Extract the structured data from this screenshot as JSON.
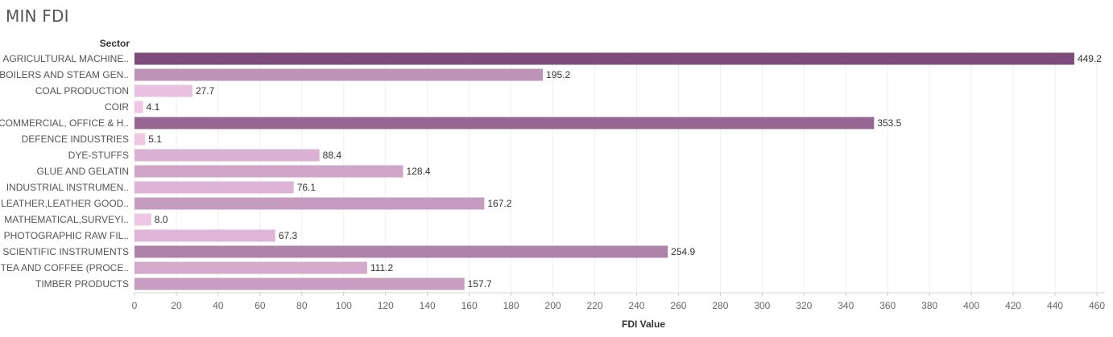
{
  "chart_data": {
    "type": "bar",
    "orientation": "horizontal",
    "title": "MIN FDI",
    "row_header": "Sector",
    "xlabel": "FDI Value",
    "ylabel": "",
    "xlim": [
      0,
      460
    ],
    "ticks": [
      0,
      20,
      40,
      60,
      80,
      100,
      120,
      140,
      160,
      180,
      200,
      220,
      240,
      260,
      280,
      300,
      320,
      340,
      360,
      380,
      400,
      420,
      440,
      460
    ],
    "grid": true,
    "categories": [
      "AGRICULTURAL MACHINE..",
      "BOILERS AND STEAM GEN..",
      "COAL PRODUCTION",
      "COIR",
      "COMMERCIAL, OFFICE & H..",
      "DEFENCE INDUSTRIES",
      "DYE-STUFFS",
      "GLUE AND GELATIN",
      "INDUSTRIAL INSTRUMEN..",
      "LEATHER,LEATHER GOOD..",
      "MATHEMATICAL,SURVEYI..",
      "PHOTOGRAPHIC RAW FIL..",
      "SCIENTIFIC INSTRUMENTS",
      "TEA AND COFFEE (PROCE..",
      "TIMBER PRODUCTS"
    ],
    "values": [
      449.2,
      195.2,
      27.7,
      4.1,
      353.5,
      5.1,
      88.4,
      128.4,
      76.1,
      167.2,
      8.0,
      67.3,
      254.9,
      111.2,
      157.7
    ],
    "value_labels": [
      "449.2",
      "195.2",
      "27.7",
      "4.1",
      "353.5",
      "5.1",
      "88.4",
      "128.4",
      "76.1",
      "167.2",
      "8.0",
      "67.3",
      "254.9",
      "111.2",
      "157.7"
    ],
    "color_scale": {
      "low": "#efc8e6",
      "high": "#7d4c7c"
    }
  }
}
